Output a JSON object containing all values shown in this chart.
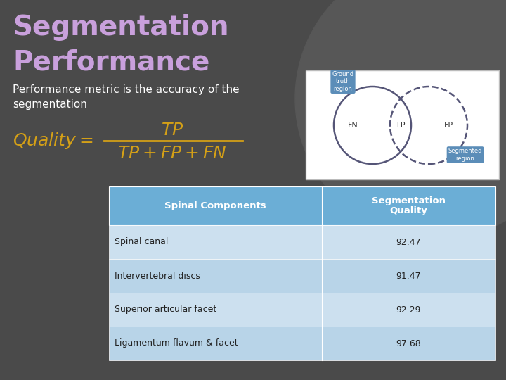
{
  "bg_color": "#4a4a4a",
  "title_line1": "Segmentation",
  "title_line2": "Performance",
  "title_color": "#c9a0dc",
  "subtitle": "Performance metric is the accuracy of the\nsegmentation",
  "subtitle_color": "#ffffff",
  "formula_color": "#d4a017",
  "table_header_bg": "#6baed6",
  "table_header_text": "#ffffff",
  "table_row_bg1": "#cce0ef",
  "table_row_bg2": "#b8d4e8",
  "table_text_color": "#222222",
  "table_headers": [
    "Spinal Components",
    "Segmentation\nQuality"
  ],
  "table_rows": [
    [
      "Spinal canal",
      "92.47"
    ],
    [
      "Intervertebral discs",
      "91.47"
    ],
    [
      "Superior articular facet",
      "92.29"
    ],
    [
      "Ligamentum flavum & facet",
      "97.68"
    ]
  ]
}
